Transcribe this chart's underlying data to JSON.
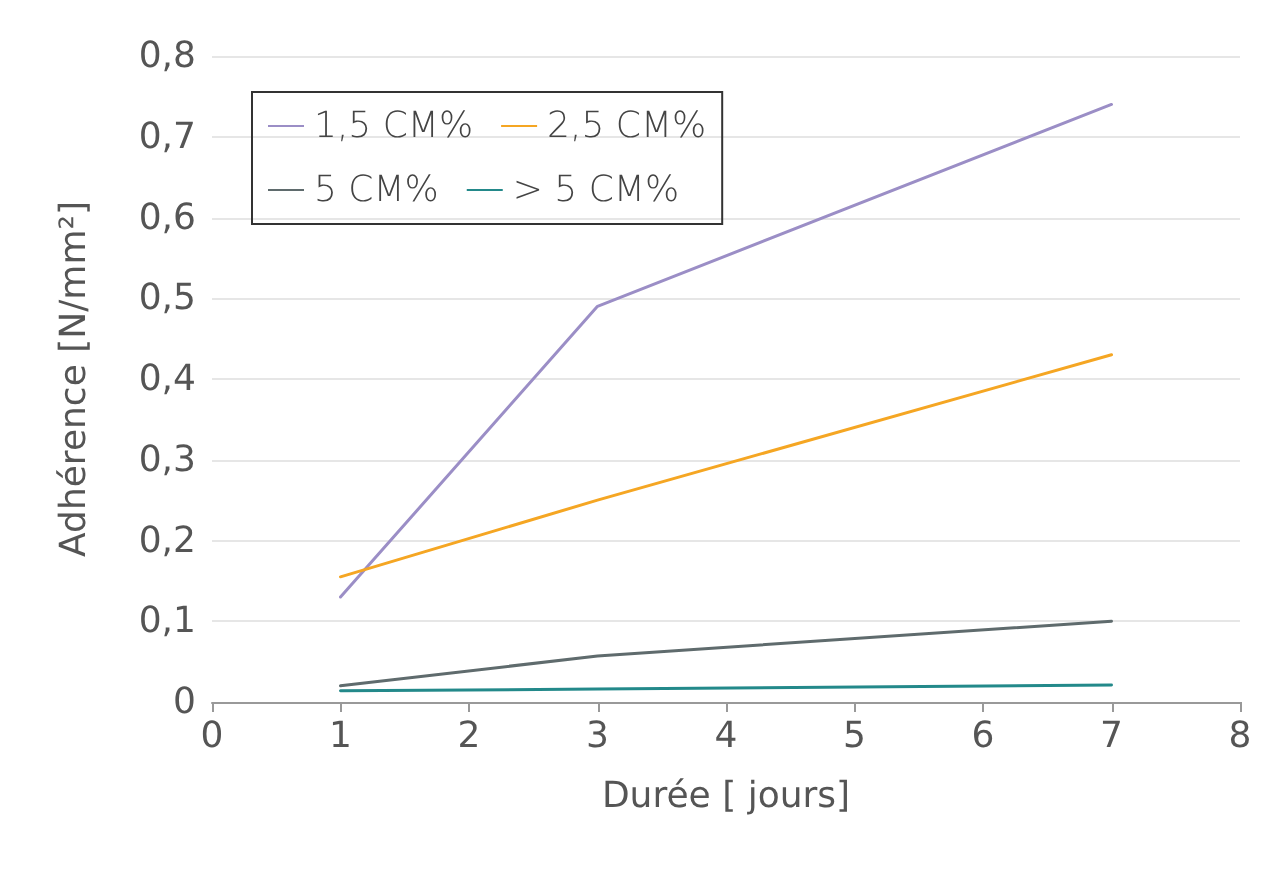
{
  "chart_data": {
    "type": "line",
    "xlabel": "Durée [ jours]",
    "ylabel": "Adhérence [N/mm²]",
    "x": [
      1,
      3,
      7
    ],
    "series": [
      {
        "name": "1,5 CM%",
        "color": "#9b8ec6",
        "values": [
          0.13,
          0.49,
          0.74
        ]
      },
      {
        "name": "2,5 CM%",
        "color": "#f5a623",
        "values": [
          0.155,
          0.25,
          0.43
        ]
      },
      {
        "name": "5 CM%",
        "color": "#5f6b6d",
        "values": [
          0.02,
          0.057,
          0.1
        ]
      },
      {
        "name": "> 5 CM%",
        "color": "#23898a",
        "values": [
          0.014,
          0.016,
          0.021
        ]
      }
    ],
    "xlim": [
      0,
      8
    ],
    "xticks": [
      0,
      1,
      2,
      3,
      4,
      5,
      6,
      7,
      8
    ],
    "ylim": [
      0,
      0.8
    ],
    "yticks": [
      {
        "value": 0,
        "label": "0"
      },
      {
        "value": 0.1,
        "label": "0,1"
      },
      {
        "value": 0.2,
        "label": "0,2"
      },
      {
        "value": 0.3,
        "label": "0,3"
      },
      {
        "value": 0.4,
        "label": "0,4"
      },
      {
        "value": 0.5,
        "label": "0,5"
      },
      {
        "value": 0.6,
        "label": "0,6"
      },
      {
        "value": 0.7,
        "label": "0,7"
      },
      {
        "value": 0.8,
        "label": "0,8"
      }
    ],
    "grid": "y",
    "legend": "top left",
    "marker": "none",
    "line_style": "solid"
  }
}
